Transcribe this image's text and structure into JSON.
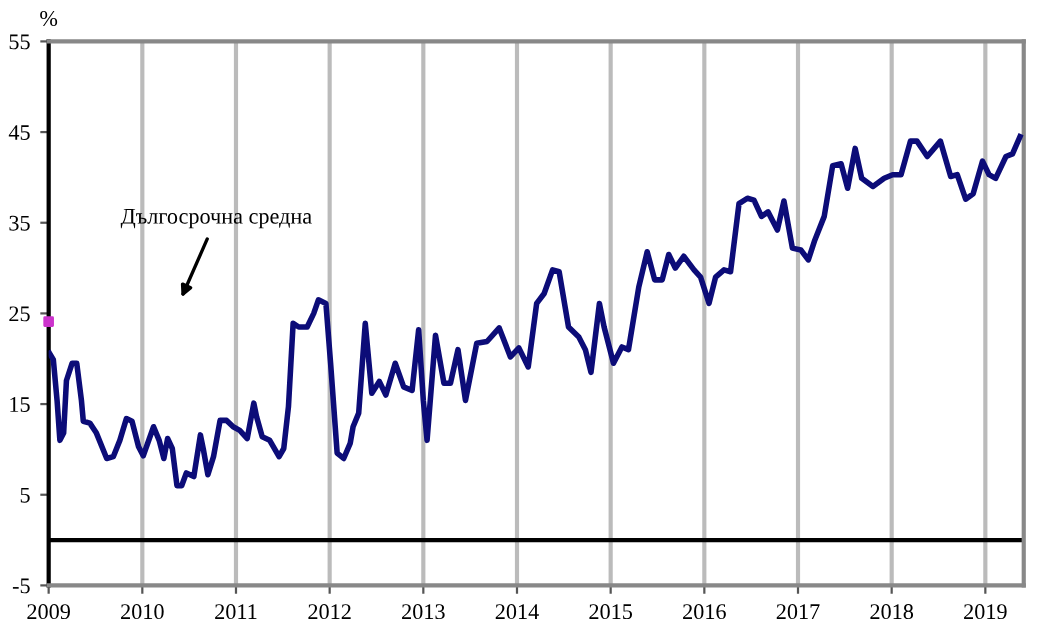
{
  "chart_data": {
    "type": "line",
    "ylabel": "%",
    "xlim": [
      2009,
      2019.41
    ],
    "ylim": [
      -5,
      55
    ],
    "xticks": [
      2009,
      2010,
      2011,
      2012,
      2013,
      2014,
      2015,
      2016,
      2017,
      2018,
      2019
    ],
    "yticks": [
      -5,
      5,
      15,
      25,
      35,
      45,
      55
    ],
    "grid": "x",
    "legend": false,
    "marker": "none",
    "line_style": "solid",
    "ref_lines": [
      {
        "axis": "y",
        "value": 0,
        "color": "#000000",
        "line_style": "solid"
      }
    ],
    "annotations": [
      "Дългосрочна средна"
    ],
    "series": [
      {
        "color": "#0c0c78",
        "x": [
          2009.01,
          2009.05,
          2009.09,
          2009.12,
          2009.16,
          2009.19,
          2009.25,
          2009.3,
          2009.35,
          2009.37,
          2009.44,
          2009.51,
          2009.62,
          2009.69,
          2009.76,
          2009.83,
          2009.89,
          2009.96,
          2010.01,
          2010.12,
          2010.18,
          2010.23,
          2010.27,
          2010.32,
          2010.37,
          2010.42,
          2010.47,
          2010.55,
          2010.62,
          2010.65,
          2010.7,
          2010.76,
          2010.83,
          2010.9,
          2010.97,
          2011.04,
          2011.12,
          2011.19,
          2011.22,
          2011.28,
          2011.36,
          2011.46,
          2011.51,
          2011.56,
          2011.61,
          2011.67,
          2011.76,
          2011.83,
          2011.88,
          2011.96,
          2012.01,
          2012.08,
          2012.15,
          2012.22,
          2012.25,
          2012.31,
          2012.38,
          2012.45,
          2012.53,
          2012.6,
          2012.7,
          2012.79,
          2012.88,
          2012.95,
          2013.0,
          2013.04,
          2013.13,
          2013.22,
          2013.29,
          2013.37,
          2013.45,
          2013.57,
          2013.68,
          2013.81,
          2013.93,
          2014.02,
          2014.12,
          2014.21,
          2014.29,
          2014.38,
          2014.45,
          2014.55,
          2014.66,
          2014.73,
          2014.79,
          2014.88,
          2014.93,
          2015.03,
          2015.12,
          2015.19,
          2015.3,
          2015.39,
          2015.47,
          2015.55,
          2015.62,
          2015.69,
          2015.78,
          2015.89,
          2015.96,
          2016.05,
          2016.12,
          2016.21,
          2016.28,
          2016.37,
          2016.46,
          2016.53,
          2016.61,
          2016.68,
          2016.78,
          2016.85,
          2016.94,
          2017.03,
          2017.11,
          2017.18,
          2017.28,
          2017.37,
          2017.46,
          2017.53,
          2017.61,
          2017.68,
          2017.8,
          2017.92,
          2018.01,
          2018.1,
          2018.2,
          2018.27,
          2018.38,
          2018.52,
          2018.63,
          2018.7,
          2018.79,
          2018.87,
          2018.97,
          2019.04,
          2019.11,
          2019.22,
          2019.29,
          2019.37
        ],
        "values": [
          20.6,
          19.9,
          15.4,
          11.0,
          11.8,
          17.6,
          19.5,
          19.5,
          15.4,
          13.1,
          12.9,
          11.8,
          9.0,
          9.2,
          11.0,
          13.4,
          13.1,
          10.3,
          9.3,
          12.5,
          11.0,
          9.0,
          11.2,
          10.1,
          6.0,
          6.0,
          7.4,
          7.0,
          11.6,
          10.1,
          7.2,
          9.2,
          13.2,
          13.2,
          12.5,
          12.1,
          11.2,
          15.1,
          13.6,
          11.4,
          11.0,
          9.2,
          10.1,
          14.7,
          23.9,
          23.5,
          23.5,
          25.0,
          26.5,
          26.1,
          19.5,
          9.6,
          9.0,
          10.7,
          12.5,
          14.0,
          23.9,
          16.2,
          17.5,
          16.0,
          19.5,
          16.9,
          16.5,
          23.2,
          15.4,
          11.0,
          22.6,
          17.3,
          17.3,
          21.0,
          15.4,
          21.7,
          21.9,
          23.4,
          20.2,
          21.2,
          19.1,
          26.1,
          27.2,
          29.8,
          29.6,
          23.5,
          22.4,
          21.0,
          18.5,
          26.1,
          23.5,
          19.5,
          21.3,
          21.0,
          27.9,
          31.8,
          28.7,
          28.7,
          31.5,
          30.0,
          31.3,
          29.8,
          29.0,
          26.1,
          29.0,
          29.8,
          29.6,
          37.1,
          37.7,
          37.5,
          35.7,
          36.2,
          34.2,
          37.4,
          32.2,
          32.0,
          30.9,
          33.1,
          35.7,
          41.3,
          41.5,
          38.8,
          43.2,
          39.9,
          39.0,
          39.9,
          40.3,
          40.3,
          44.0,
          44.0,
          42.3,
          44.0,
          40.1,
          40.3,
          37.6,
          38.2,
          41.8,
          40.3,
          39.9,
          42.3,
          42.6,
          44.5
        ]
      },
      {
        "type": "scatter",
        "color": "#cc33cc",
        "marker": "square",
        "x": [
          2009.0
        ],
        "values": [
          24.1
        ]
      }
    ]
  }
}
